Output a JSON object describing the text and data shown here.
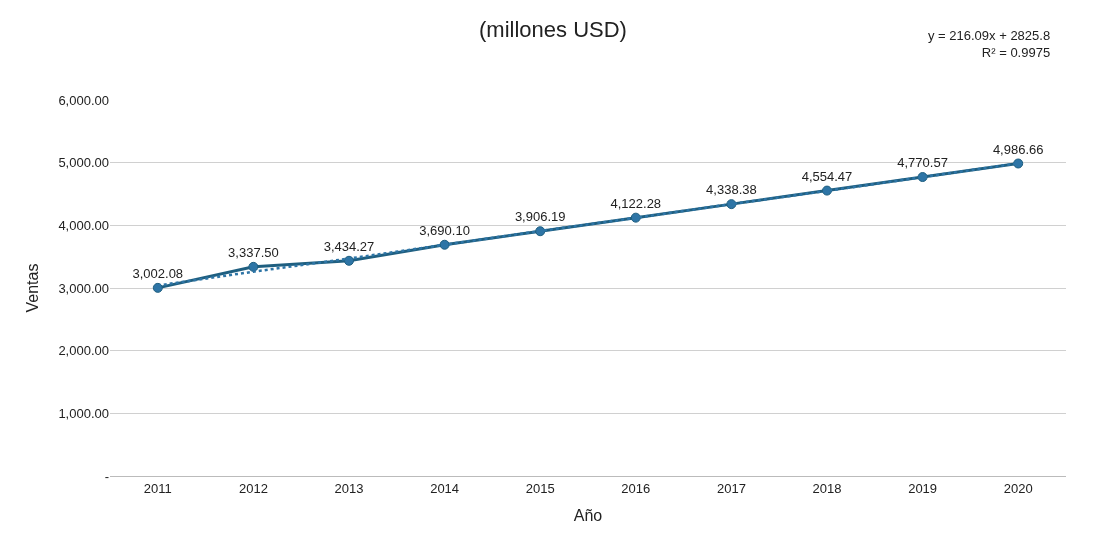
{
  "chart_data": {
    "type": "line",
    "title": "(millones USD)",
    "xlabel": "Año",
    "ylabel": "Ventas",
    "categories": [
      "2011",
      "2012",
      "2013",
      "2014",
      "2015",
      "2016",
      "2017",
      "2018",
      "2019",
      "2020"
    ],
    "series": [
      {
        "color": "#1f5f80",
        "values": [
          3002.08,
          3337.5,
          3434.27,
          3690.1,
          3906.19,
          4122.28,
          4338.38,
          4554.47,
          4770.57,
          4986.66
        ],
        "value_labels": [
          "3,002.08",
          "3,337.50",
          "3,434.27",
          "3,690.10",
          "3,906.19",
          "4,122.28",
          "4,338.38",
          "4,554.47",
          "4,770.57",
          "4,986.66"
        ],
        "marker": "circle",
        "line_style": "solid"
      },
      {
        "color": "#2e75a6",
        "values": [
          3040,
          3260,
          3470,
          3690,
          3910,
          4120,
          4340,
          4550,
          4770,
          4990
        ],
        "marker": "none",
        "line_style": "dotted"
      }
    ],
    "ylim": [
      0,
      6000
    ],
    "yticks": [
      {
        "value": 0,
        "label": "-"
      },
      {
        "value": 1000,
        "label": "1,000.00"
      },
      {
        "value": 2000,
        "label": "2,000.00"
      },
      {
        "value": 3000,
        "label": "3,000.00"
      },
      {
        "value": 4000,
        "label": "4,000.00"
      },
      {
        "value": 5000,
        "label": "5,000.00"
      },
      {
        "value": 6000,
        "label": "6,000.00"
      }
    ],
    "grid": "y",
    "annotations": [
      "y = 216.09x + 2825.8",
      "R² = 0.9975"
    ]
  }
}
